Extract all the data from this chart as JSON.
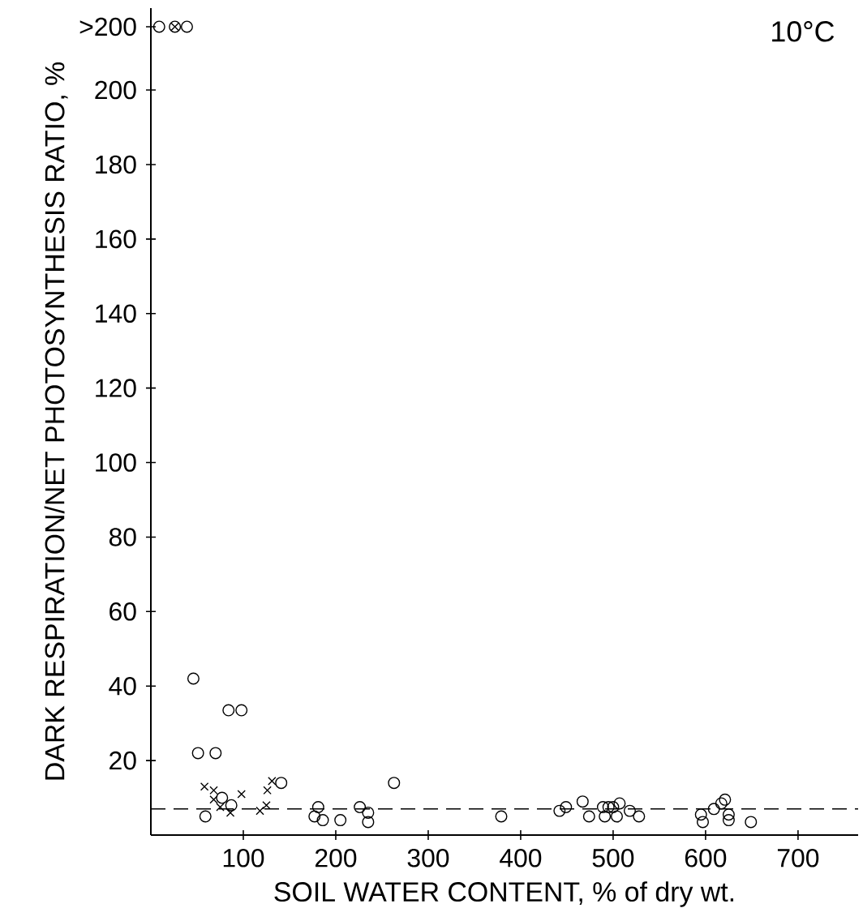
{
  "chart_data": {
    "type": "scatter",
    "xlabel": "SOIL WATER CONTENT, % of dry wt.",
    "ylabel": "DARK RESPIRATION/NET PHOTOSYNTHESIS RATIO, %",
    "annotations": [
      "10°C"
    ],
    "xlim": [
      0,
      765
    ],
    "ylim": [
      0,
      222
    ],
    "xticks": [
      100,
      200,
      300,
      400,
      500,
      600,
      700
    ],
    "yticks": [
      20,
      40,
      60,
      80,
      100,
      120,
      140,
      160,
      180,
      200,
      {
        "value": 217,
        "label": ">200"
      }
    ],
    "grid": false,
    "ref_lines": [
      {
        "axis": "y",
        "value": 7,
        "line_style": "dashed",
        "color": "#000000"
      }
    ],
    "series": [
      {
        "color": "#000000",
        "marker": "circle",
        "x": [
          9,
          26,
          39,
          46,
          84,
          98,
          51,
          70,
          59,
          77,
          87,
          141
        ],
        "values": [
          217,
          217,
          217,
          42,
          33.5,
          33.5,
          22,
          22,
          5,
          10,
          8,
          14
        ]
      },
      {
        "color": "#000000",
        "marker": "cross",
        "x": [
          26,
          58,
          68,
          68,
          75,
          86,
          98,
          118,
          125,
          126,
          131
        ],
        "values": [
          217,
          13,
          12,
          9.5,
          7.5,
          6,
          11,
          6.5,
          8,
          12,
          14.5
        ]
      },
      {
        "color": "#000000",
        "marker": "circle",
        "x": [
          181,
          177,
          186,
          205,
          226,
          235,
          235,
          263,
          379,
          442,
          449,
          467,
          474,
          489,
          495,
          500,
          507,
          491,
          504,
          518,
          528,
          595,
          597,
          609,
          617,
          621,
          625,
          625,
          649
        ],
        "values": [
          7.5,
          5,
          4,
          4,
          7.5,
          6,
          3.5,
          14,
          5,
          6.5,
          7.5,
          9,
          5,
          7.5,
          7.5,
          7.5,
          8.5,
          5,
          5,
          6.5,
          5,
          5.5,
          3.5,
          7,
          8.5,
          9.5,
          5.5,
          4,
          3.5
        ]
      }
    ]
  }
}
